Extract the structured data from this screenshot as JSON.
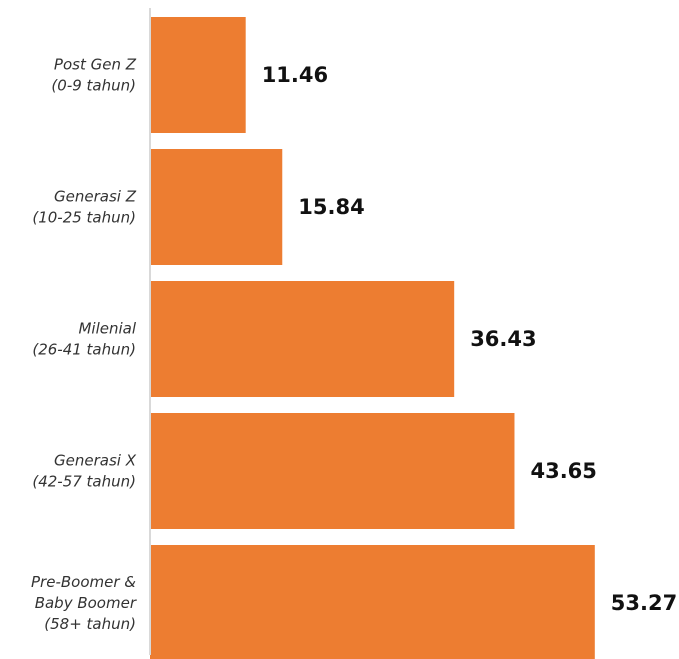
{
  "chart_data": {
    "type": "bar",
    "orientation": "horizontal",
    "categories": [
      [
        "Post Gen Z",
        "(0-9 tahun)"
      ],
      [
        "Generasi Z",
        "(10-25 tahun)"
      ],
      [
        "Milenial",
        "(26-41 tahun)"
      ],
      [
        "Generasi X",
        "(42-57 tahun)"
      ],
      [
        "Pre-Boomer &",
        "Baby Boomer",
        "(58+ tahun)"
      ]
    ],
    "values": [
      11.46,
      15.84,
      36.43,
      43.65,
      53.27
    ],
    "value_labels": [
      "11.46",
      "15.84",
      "36.43",
      "43.65",
      "53.27"
    ],
    "title": "",
    "xlabel": "",
    "ylabel": "",
    "xlim": [
      0,
      57
    ],
    "grid": false,
    "legend": "none",
    "bar_color": "#ED7D31",
    "axis_color": "#D9D9D9"
  }
}
